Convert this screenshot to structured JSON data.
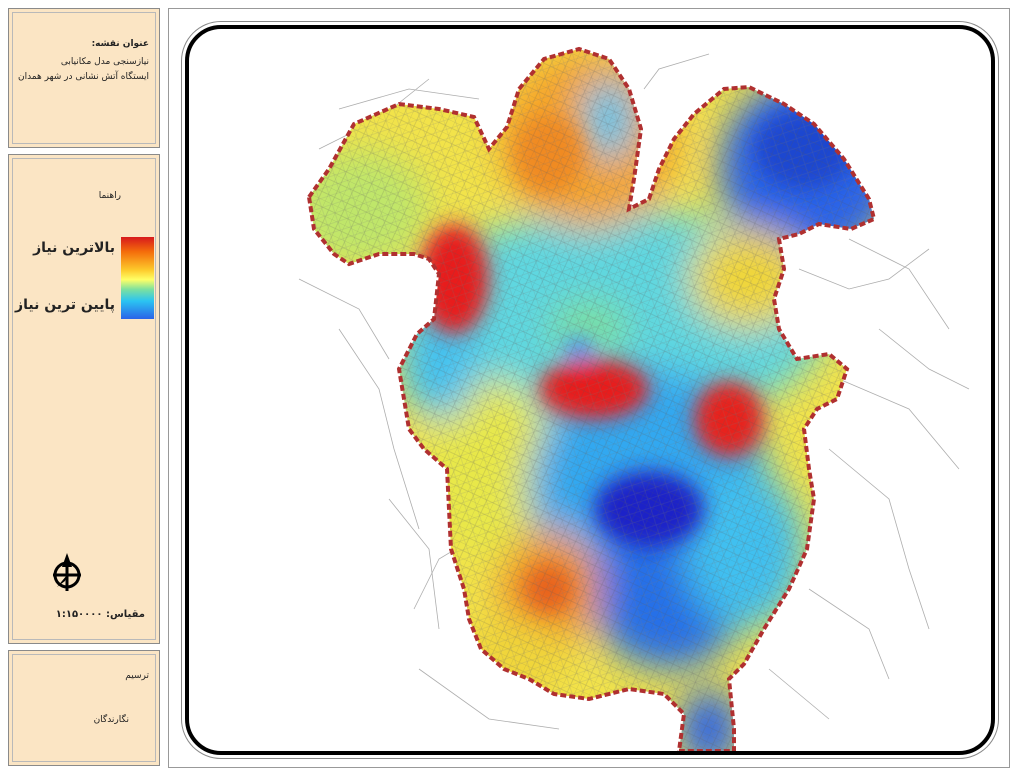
{
  "title_panel": {
    "label": "عنوان نقشه:",
    "line1": "نیازسنجی مدل مکانیابی",
    "line2": "ایستگاه آتش نشانی در شهر همدان"
  },
  "legend": {
    "title": "راهنما",
    "high_label": "بالاترین نیاز",
    "low_label": "پایین ترین نیاز",
    "ramp_colors": [
      "#d7191c",
      "#f46d0b",
      "#fdc92b",
      "#ffff66",
      "#7be0a0",
      "#2bc4f2",
      "#2b63e8"
    ],
    "north_arrow": "north-arrow-icon",
    "scale_text": "مقیاس: ۱:۱۵۰۰۰۰"
  },
  "credits_panel": {
    "label": "ترسیم",
    "names": "نگارندگان"
  },
  "map": {
    "boundary_color": "#b03030",
    "hotspots": "high-demand zones shown red, low-demand zones blue"
  }
}
